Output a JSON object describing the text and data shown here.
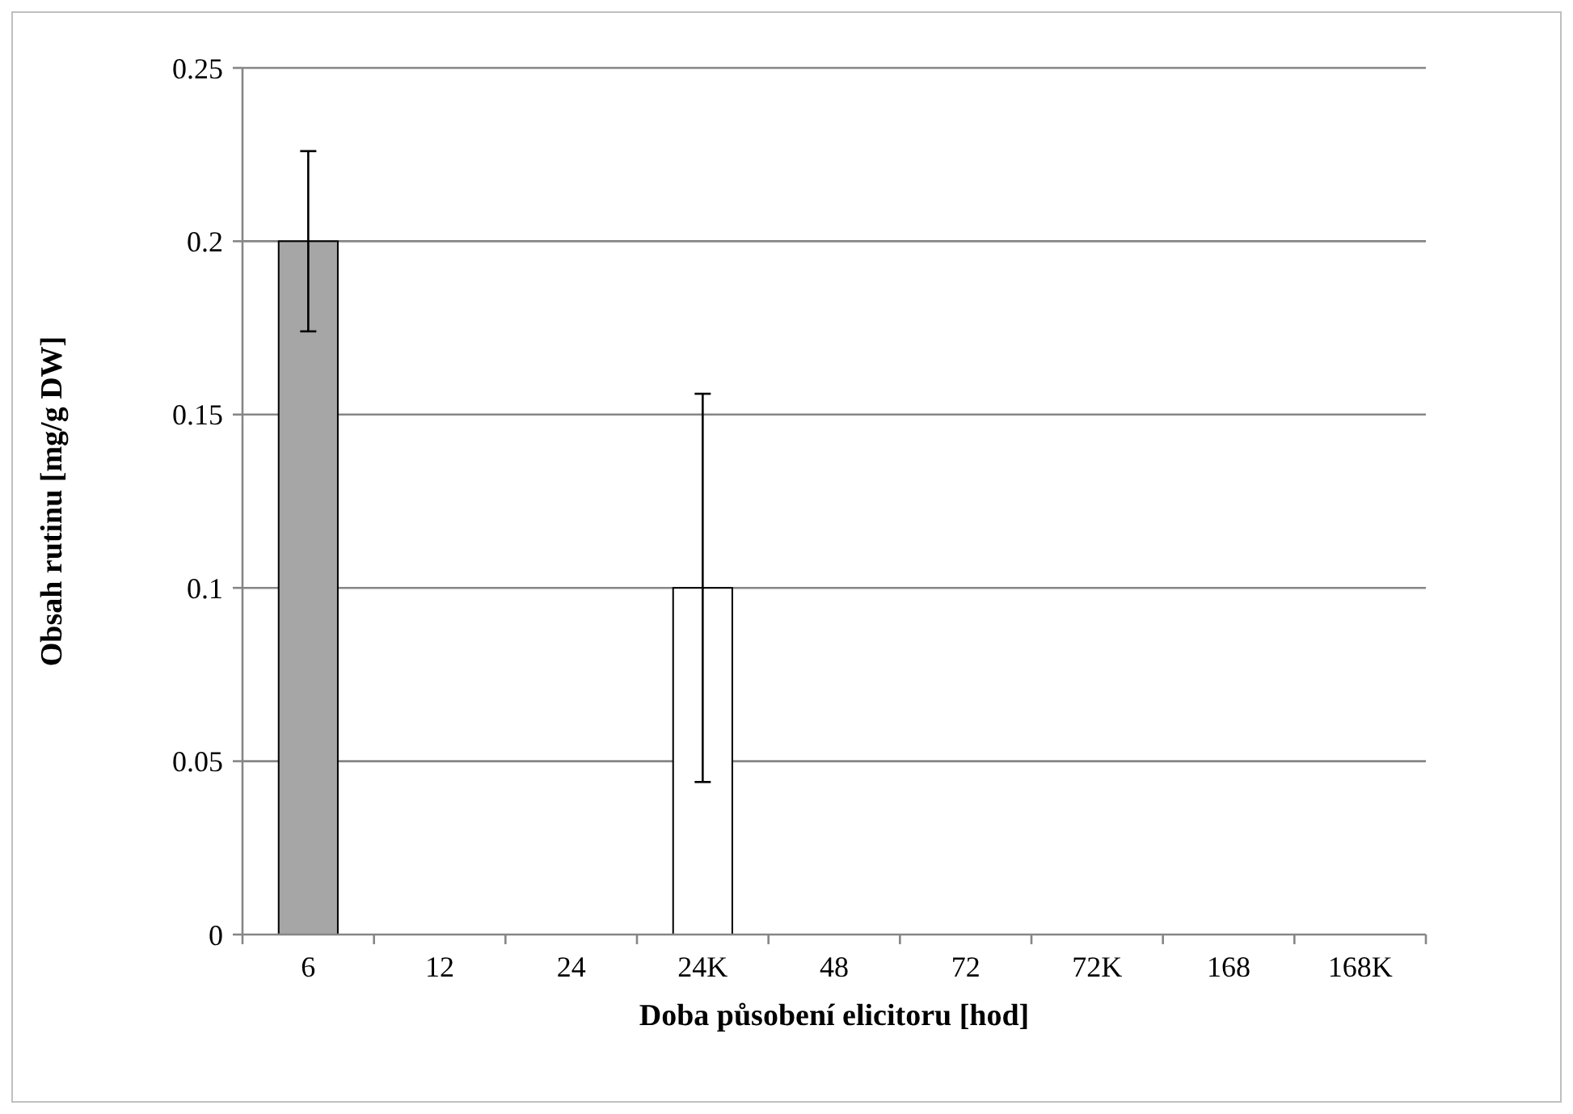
{
  "chart_data": {
    "type": "bar",
    "xlabel": "Doba působení elicitoru [hod]",
    "ylabel": "Obsah rutinu [mg/g DW]",
    "categories": [
      "6",
      "12",
      "24",
      "24K",
      "48",
      "72",
      "72K",
      "168",
      "168K"
    ],
    "values": [
      0.2,
      0,
      0,
      0.1,
      0,
      0,
      0,
      0,
      0
    ],
    "colors": [
      "#a6a6a6",
      "#ffffff",
      "#ffffff",
      "#ffffff",
      "#ffffff",
      "#ffffff",
      "#ffffff",
      "#ffffff",
      "#ffffff"
    ],
    "errors": [
      0.026,
      null,
      null,
      0.056,
      null,
      null,
      null,
      null,
      null
    ],
    "ylim": [
      0,
      0.25
    ],
    "yticks": [
      0,
      0.05,
      0.1,
      0.15,
      0.2,
      0.25
    ],
    "grid": "y"
  }
}
